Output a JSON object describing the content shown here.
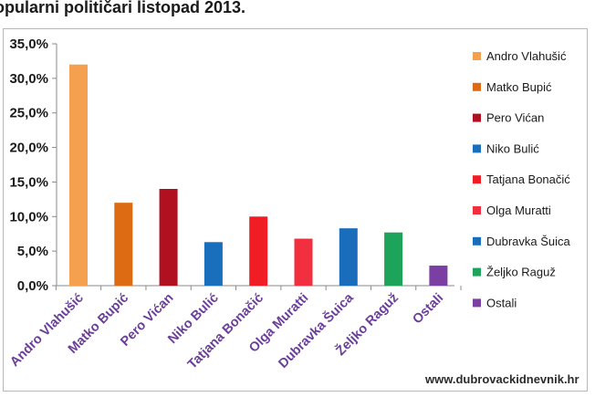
{
  "chart_data": {
    "type": "bar",
    "title": "opularni političari listopad 2013.",
    "categories": [
      "Andro Vlahušić",
      "Matko Bupić",
      "Pero Vićan",
      "Niko Bulić",
      "Tatjana Bonačić",
      "Olga Muratti",
      "Dubravka Šuica",
      "Željko Raguž",
      "Ostali"
    ],
    "values": [
      32.0,
      12.0,
      14.0,
      6.3,
      10.0,
      6.8,
      8.3,
      7.7,
      2.9
    ],
    "colors": [
      "#f4a04f",
      "#dc6b14",
      "#b01020",
      "#1a6fbd",
      "#f01d25",
      "#f22f3e",
      "#1a6dbb",
      "#1ea45a",
      "#7b3fa4"
    ],
    "legend": [
      "Andro Vlahušić",
      "Matko Bupić",
      "Pero Vićan",
      "Niko Bulić",
      "Tatjana Bonačić",
      "Olga Muratti",
      "Dubravka Šuica",
      "Željko Raguž",
      "Ostali"
    ],
    "legend_position": "right",
    "ylim": [
      0,
      35
    ],
    "yticks": [
      "0,0%",
      "5,0%",
      "10,0%",
      "15,0%",
      "20,0%",
      "25,0%",
      "30,0%",
      "35,0%"
    ],
    "grid": false,
    "xlabel": "",
    "ylabel": ""
  },
  "source_label": "www.dubrovackidnevnik.hr"
}
